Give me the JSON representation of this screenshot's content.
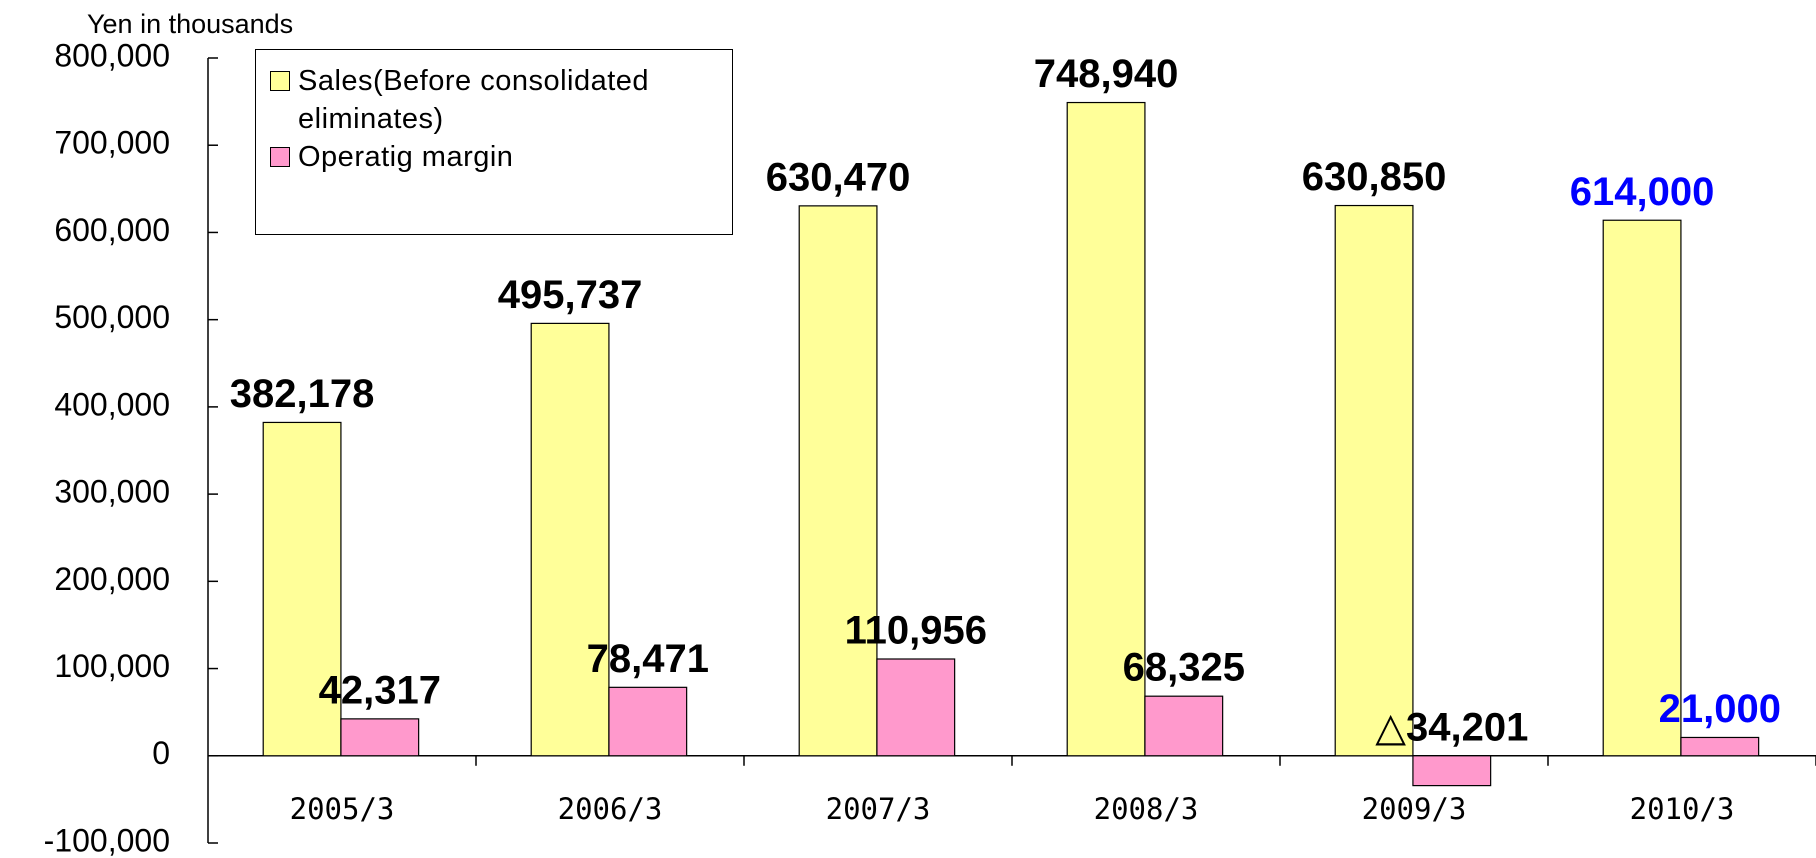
{
  "chart_data": {
    "type": "bar",
    "y_axis_label": "Yen in thousands",
    "categories": [
      "2005/3",
      "2006/3",
      "2007/3",
      "2008/3",
      "2009/3",
      "2010/3"
    ],
    "series": [
      {
        "name": "Sales(Before consolidated eliminates)",
        "color": "#ffff99",
        "values": [
          382178,
          495737,
          630470,
          748940,
          630850,
          614000
        ],
        "value_labels": [
          "382,178",
          "495,737",
          "630,470",
          "748,940",
          "630,850",
          "614,000"
        ],
        "value_label_colors": [
          "#000000",
          "#000000",
          "#000000",
          "#000000",
          "#000000",
          "#0000ff"
        ]
      },
      {
        "name": "Operatig margin",
        "color": "#ff99cc",
        "values": [
          42317,
          78471,
          110956,
          68325,
          -34201,
          21000
        ],
        "value_labels": [
          "42,317",
          "78,471",
          "110,956",
          "68,325",
          "△34,201",
          "21,000"
        ],
        "value_label_colors": [
          "#000000",
          "#000000",
          "#000000",
          "#000000",
          "#000000",
          "#0000ff"
        ]
      }
    ],
    "ylim": [
      -100000,
      800000
    ],
    "yticks": [
      {
        "value": -100000,
        "label": "-100,000"
      },
      0,
      {
        "value": 100000,
        "label": "100,000"
      },
      {
        "value": 200000,
        "label": "200,000"
      },
      {
        "value": 300000,
        "label": "300,000"
      },
      {
        "value": 400000,
        "label": "400,000"
      },
      {
        "value": 500000,
        "label": "500,000"
      },
      {
        "value": 600000,
        "label": "600,000"
      },
      {
        "value": 700000,
        "label": "700,000"
      },
      {
        "value": 800000,
        "label": "800,000"
      }
    ],
    "grid": false,
    "legend": "upper left"
  }
}
